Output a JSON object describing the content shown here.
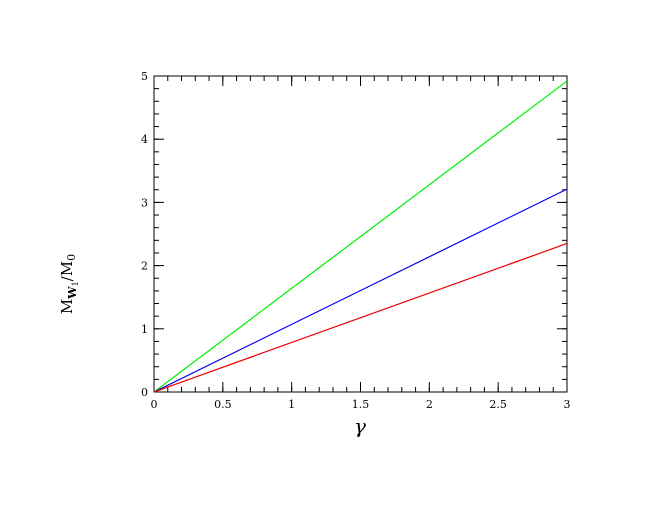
{
  "chart_data": {
    "type": "line",
    "title": "",
    "xlabel": "γ",
    "ylabel": {
      "main": "M",
      "sub": "W",
      "subsub": "1",
      "tail": "/M",
      "tail_sub": "0"
    },
    "xlim": [
      0,
      3
    ],
    "ylim": [
      0,
      5
    ],
    "x_ticks": [
      0,
      0.5,
      1,
      1.5,
      2,
      2.5,
      3
    ],
    "x_tick_labels": [
      "0",
      "0.5",
      "1",
      "1.5",
      "2",
      "2.5",
      "3"
    ],
    "y_ticks": [
      0,
      1,
      2,
      3,
      4,
      5
    ],
    "y_tick_labels": [
      "0",
      "1",
      "2",
      "3",
      "4",
      "5"
    ],
    "x_minor_step": 0.1,
    "y_minor_step": 0.2,
    "grid": false,
    "legend": "none",
    "series": [
      {
        "color": "#00ee00",
        "x": [
          0,
          3
        ],
        "y": [
          0,
          4.92
        ]
      },
      {
        "color": "#0000ee",
        "x": [
          0,
          3
        ],
        "y": [
          0,
          3.21
        ]
      },
      {
        "color": "#ee0000",
        "x": [
          0,
          3
        ],
        "y": [
          0,
          2.35
        ]
      }
    ]
  }
}
